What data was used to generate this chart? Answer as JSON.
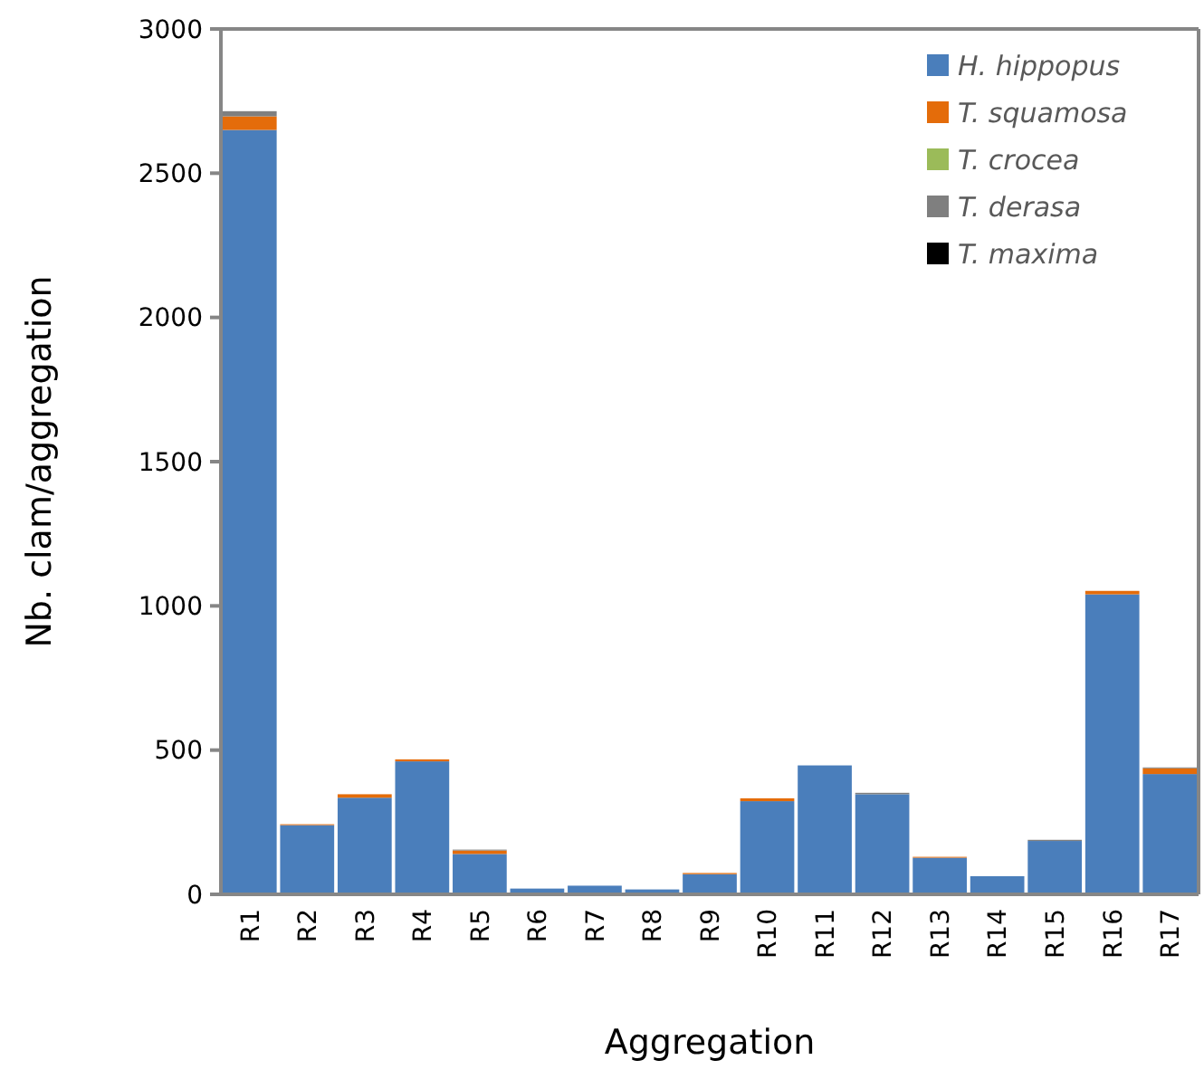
{
  "chart_data": {
    "type": "bar",
    "stacked": true,
    "xlabel": "Aggregation",
    "ylabel": "Nb. clam/aggregation",
    "categories": [
      "R1",
      "R2",
      "R3",
      "R4",
      "R5",
      "R6",
      "R7",
      "R8",
      "R9",
      "R10",
      "R11",
      "R12",
      "R13",
      "R14",
      "R15",
      "R16",
      "R17"
    ],
    "series": [
      {
        "name": "H. hippopus",
        "color": "#4a7ebb",
        "values": [
          2650,
          240,
          335,
          461,
          140,
          20,
          30,
          17,
          70,
          323,
          447,
          347,
          127,
          63,
          185,
          1040,
          417
        ]
      },
      {
        "name": "T. squamosa",
        "color": "#e46c0a",
        "values": [
          47,
          3,
          12,
          7,
          12,
          0,
          0,
          0,
          4,
          10,
          0,
          0,
          3,
          0,
          0,
          12,
          20
        ]
      },
      {
        "name": "T. crocea",
        "color": "#9bbb59",
        "values": [
          0,
          0,
          0,
          0,
          0,
          0,
          0,
          0,
          0,
          0,
          0,
          0,
          0,
          0,
          0,
          0,
          0
        ]
      },
      {
        "name": "T. derasa",
        "color": "#7f7f7f",
        "values": [
          18,
          0,
          0,
          0,
          3,
          0,
          0,
          0,
          0,
          0,
          0,
          5,
          0,
          0,
          4,
          0,
          3
        ]
      },
      {
        "name": "T. maxima",
        "color": "#000000",
        "values": [
          0,
          0,
          0,
          0,
          0,
          0,
          0,
          0,
          0,
          0,
          0,
          0,
          0,
          0,
          0,
          0,
          0
        ]
      }
    ],
    "ylim": [
      0,
      3000
    ],
    "yticks": [
      0,
      500,
      1000,
      1500,
      2000,
      2500,
      3000
    ],
    "grid": false,
    "legend": "top right"
  }
}
